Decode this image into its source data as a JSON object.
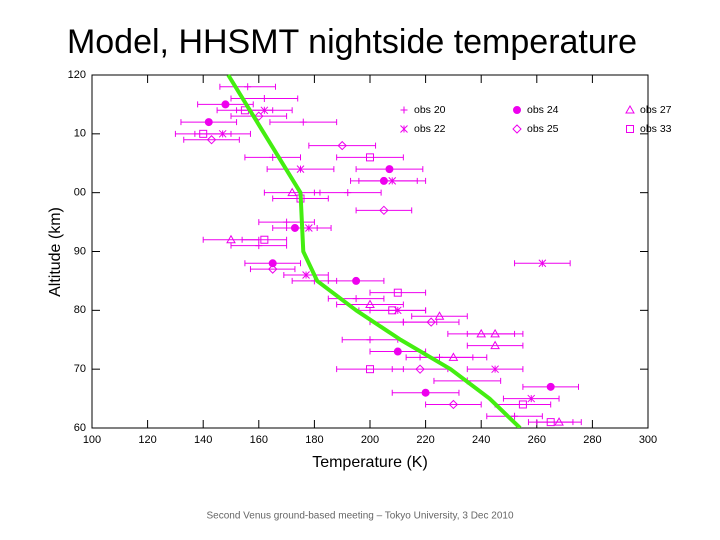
{
  "chart_data": {
    "type": "scatter",
    "title": "Model, HHSMT nightside temperature",
    "xlabel": "Temperature (K)",
    "ylabel": "Altitude (km)",
    "footer": "Second Venus ground-based meeting – Tokyo University, 3 Dec 2010",
    "xlim": [
      100,
      300
    ],
    "ylim": [
      60,
      120
    ],
    "xticks": [
      100,
      120,
      140,
      160,
      180,
      200,
      220,
      240,
      260,
      280,
      300
    ],
    "yticks": [
      60,
      70,
      80,
      90,
      {
        "value": 100,
        "label": "00"
      },
      {
        "value": 110,
        "label": "10"
      },
      120
    ],
    "curve": {
      "color": "#44ee11",
      "x": [
        149,
        162,
        175,
        176,
        181,
        195,
        211,
        229,
        243,
        254
      ],
      "y": [
        120,
        110,
        100,
        90,
        85,
        80,
        75,
        70,
        65,
        60
      ]
    },
    "series": [
      {
        "name": "obs 20",
        "marker": "plus",
        "color": "#ee00ee",
        "x": [
          156,
          162,
          176,
          165,
          192,
          170,
          160,
          180,
          195,
          212,
          200,
          225,
          235,
          252
        ],
        "y": [
          118,
          116,
          112,
          106,
          100,
          95,
          91,
          85,
          82,
          78,
          75,
          72,
          68,
          62
        ],
        "xerr": [
          10,
          12,
          12,
          10,
          12,
          10,
          10,
          8,
          10,
          12,
          10,
          12,
          12,
          10
        ]
      },
      {
        "name": "obs 22",
        "marker": "star",
        "color": "#ee00ee",
        "x": [
          162,
          147,
          175,
          208,
          178,
          262,
          177,
          210,
          245,
          258
        ],
        "y": [
          114,
          110,
          104,
          102,
          94,
          88,
          86,
          80,
          70,
          65
        ],
        "xerr": [
          10,
          10,
          12,
          12,
          8,
          10,
          8,
          10,
          10,
          10
        ]
      },
      {
        "name": "obs 24",
        "marker": "circle",
        "color": "#ee00ee",
        "x": [
          148,
          142,
          207,
          205,
          173,
          165,
          195,
          210,
          220,
          265
        ],
        "y": [
          115,
          112,
          104,
          102,
          94,
          88,
          85,
          73,
          66,
          67
        ],
        "xerr": [
          10,
          10,
          12,
          12,
          8,
          10,
          10,
          10,
          12,
          10
        ]
      },
      {
        "name": "obs 25",
        "marker": "diamond",
        "color": "#ee00ee",
        "x": [
          160,
          143,
          190,
          205,
          165,
          222,
          218,
          230
        ],
        "y": [
          113,
          109,
          108,
          97,
          87,
          78,
          70,
          64
        ],
        "xerr": [
          10,
          10,
          12,
          10,
          8,
          10,
          10,
          10
        ]
      },
      {
        "name": "obs 27",
        "marker": "triangle",
        "color": "#ee00ee",
        "x": [
          172,
          150,
          200,
          225,
          245,
          240,
          245,
          230,
          268
        ],
        "y": [
          100,
          92,
          81,
          79,
          76,
          76,
          74,
          72,
          61
        ],
        "xerr": [
          10,
          10,
          12,
          10,
          10,
          12,
          10,
          12,
          8
        ]
      },
      {
        "name": "obs 33",
        "marker": "square",
        "color": "#ee00ee",
        "x": [
          155,
          140,
          200,
          175,
          162,
          210,
          208,
          200,
          255,
          265
        ],
        "y": [
          114,
          110,
          106,
          99,
          92,
          83,
          80,
          70,
          64,
          61
        ],
        "xerr": [
          10,
          10,
          12,
          10,
          8,
          10,
          12,
          12,
          10,
          8
        ]
      }
    ]
  }
}
